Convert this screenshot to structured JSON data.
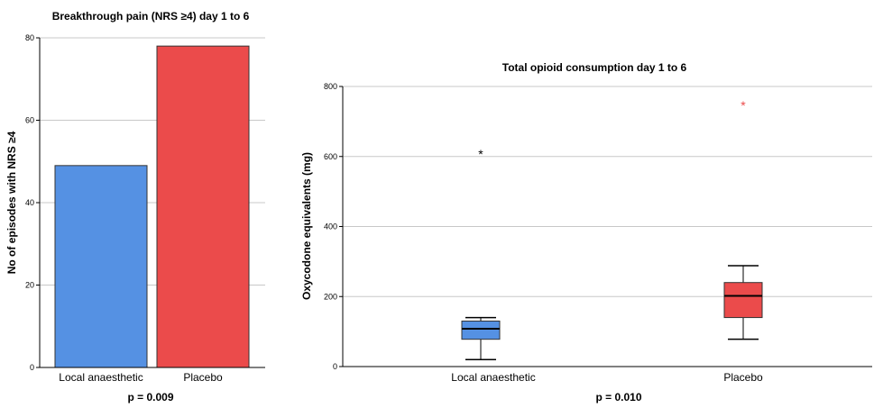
{
  "chart_data": [
    {
      "type": "bar",
      "title": "Breakthrough pain (NRS ≥4) day 1 to 6",
      "ylabel": "No of episodes with NRS ≥4",
      "xlabel": "",
      "categories": [
        "Local anaesthetic",
        "Placebo"
      ],
      "values": [
        49,
        78
      ],
      "colors": [
        "#5591e3",
        "#eb4b4b"
      ],
      "ylim": [
        0,
        80
      ],
      "yticks": [
        "0",
        "20",
        "40",
        "60",
        "80"
      ],
      "grid": true,
      "annotation": "p = 0.009"
    },
    {
      "type": "box",
      "title": "Total opioid consumption day 1 to 6",
      "ylabel": "Oxycodone equivalents (mg)",
      "xlabel": "",
      "categories": [
        "Local anaesthetic",
        "Placebo"
      ],
      "boxes": [
        {
          "whisker_low": 20,
          "q1": 78,
          "median": 108,
          "q3": 130,
          "whisker_high": 140,
          "outliers": [
            610
          ],
          "color": "#5591e3",
          "outlier_color": "#000000"
        },
        {
          "whisker_low": 78,
          "q1": 140,
          "median": 202,
          "q3": 240,
          "whisker_high": 288,
          "outliers": [
            748
          ],
          "color": "#eb4b4b",
          "outlier_color": "#eb4b4b"
        }
      ],
      "ylim": [
        0,
        800
      ],
      "yticks": [
        "0",
        "200",
        "400",
        "600",
        "800"
      ],
      "grid": true,
      "annotation": "p = 0.010"
    }
  ]
}
